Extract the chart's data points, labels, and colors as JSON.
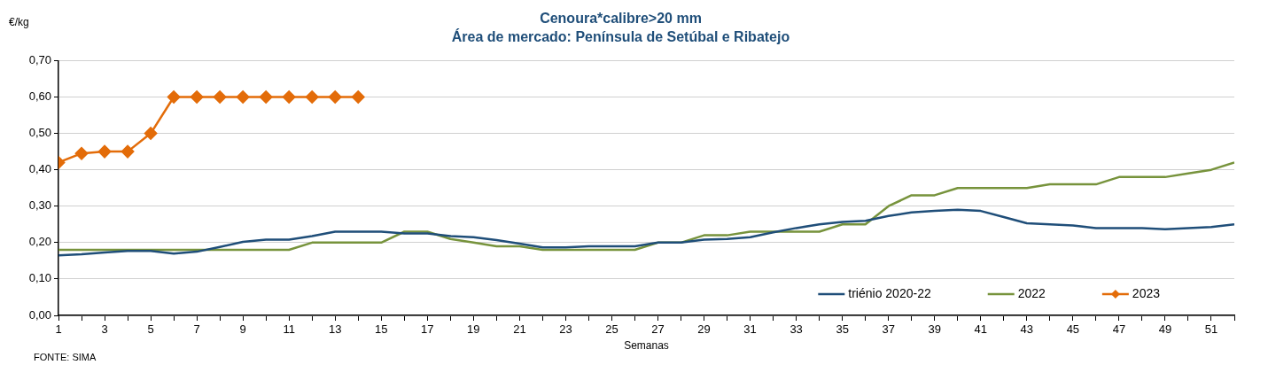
{
  "chart_data": {
    "type": "line",
    "title": "Cenoura*calibre>20 mm",
    "subtitle": "Área de mercado: Península de Setúbal e Ribatejo",
    "ylabel": "€/kg",
    "xlabel": "Semanas",
    "annotations": [
      "FONTE: SIMA"
    ],
    "x": [
      1,
      2,
      3,
      4,
      5,
      6,
      7,
      8,
      9,
      10,
      11,
      12,
      13,
      14,
      15,
      16,
      17,
      18,
      19,
      20,
      21,
      22,
      23,
      24,
      25,
      26,
      27,
      28,
      29,
      30,
      31,
      32,
      33,
      34,
      35,
      36,
      37,
      38,
      39,
      40,
      41,
      42,
      43,
      44,
      45,
      46,
      47,
      48,
      49,
      50,
      51,
      52
    ],
    "series": [
      {
        "name": "triénio 2020-22",
        "color": "#1f4e79",
        "marker": "none",
        "values": [
          0.165,
          0.168,
          0.173,
          0.177,
          0.177,
          0.17,
          0.175,
          0.188,
          0.202,
          0.208,
          0.208,
          0.218,
          0.23,
          0.23,
          0.23,
          0.225,
          0.225,
          0.218,
          0.215,
          0.207,
          0.197,
          0.187,
          0.187,
          0.19,
          0.19,
          0.19,
          0.2,
          0.2,
          0.208,
          0.21,
          0.215,
          0.228,
          0.24,
          0.25,
          0.257,
          0.26,
          0.273,
          0.283,
          0.287,
          0.29,
          0.287,
          0.27,
          0.253,
          0.25,
          0.247,
          0.24,
          0.24,
          0.24,
          0.237,
          0.24,
          0.243,
          0.25
        ]
      },
      {
        "name": "2022",
        "color": "#77933c",
        "marker": "none",
        "values": [
          0.18,
          0.18,
          0.18,
          0.18,
          0.18,
          0.18,
          0.18,
          0.18,
          0.18,
          0.18,
          0.18,
          0.2,
          0.2,
          0.2,
          0.2,
          0.23,
          0.23,
          0.21,
          0.2,
          0.19,
          0.19,
          0.18,
          0.18,
          0.18,
          0.18,
          0.18,
          0.2,
          0.2,
          0.22,
          0.22,
          0.23,
          0.23,
          0.23,
          0.23,
          0.25,
          0.25,
          0.3,
          0.33,
          0.33,
          0.35,
          0.35,
          0.35,
          0.35,
          0.36,
          0.36,
          0.36,
          0.38,
          0.38,
          0.38,
          0.39,
          0.4,
          0.42
        ]
      },
      {
        "name": "2023",
        "color": "#e36c09",
        "marker": "diamond",
        "x": [
          1,
          2,
          3,
          4,
          5,
          6,
          7,
          8,
          9,
          10,
          11,
          12,
          13,
          14
        ],
        "values": [
          0.42,
          0.445,
          0.45,
          0.45,
          0.5,
          0.6,
          0.6,
          0.6,
          0.6,
          0.6,
          0.6,
          0.6,
          0.6,
          0.6
        ]
      }
    ],
    "xlim": [
      1,
      52
    ],
    "xticks": [
      1,
      {
        "value": 2,
        "label": null
      },
      3,
      {
        "value": 4,
        "label": null
      },
      5,
      {
        "value": 6,
        "label": null
      },
      7,
      {
        "value": 8,
        "label": null
      },
      9,
      {
        "value": 10,
        "label": null
      },
      11,
      {
        "value": 12,
        "label": null
      },
      13,
      {
        "value": 14,
        "label": null
      },
      15,
      {
        "value": 16,
        "label": null
      },
      17,
      {
        "value": 18,
        "label": null
      },
      19,
      {
        "value": 20,
        "label": null
      },
      21,
      {
        "value": 22,
        "label": null
      },
      23,
      {
        "value": 24,
        "label": null
      },
      25,
      {
        "value": 26,
        "label": null
      },
      27,
      {
        "value": 28,
        "label": null
      },
      29,
      {
        "value": 30,
        "label": null
      },
      31,
      {
        "value": 32,
        "label": null
      },
      33,
      {
        "value": 34,
        "label": null
      },
      35,
      {
        "value": 36,
        "label": null
      },
      37,
      {
        "value": 38,
        "label": null
      },
      39,
      {
        "value": 40,
        "label": null
      },
      41,
      {
        "value": 42,
        "label": null
      },
      43,
      {
        "value": 44,
        "label": null
      },
      45,
      {
        "value": 46,
        "label": null
      },
      47,
      {
        "value": 48,
        "label": null
      },
      49,
      {
        "value": 50,
        "label": null
      },
      51,
      {
        "value": 52,
        "label": null
      }
    ],
    "ylim": [
      0,
      0.7
    ],
    "yticks": [
      {
        "value": 0,
        "label": "0,00"
      },
      {
        "value": 0.1,
        "label": "0,10"
      },
      {
        "value": 0.2,
        "label": "0,20"
      },
      {
        "value": 0.3,
        "label": "0,30"
      },
      {
        "value": 0.4,
        "label": "0,40"
      },
      {
        "value": 0.5,
        "label": "0,50"
      },
      {
        "value": 0.6,
        "label": "0,60"
      },
      {
        "value": 0.7,
        "label": "0,70"
      }
    ],
    "grid": "y",
    "legend": "bottom right",
    "line_style": "solid"
  }
}
